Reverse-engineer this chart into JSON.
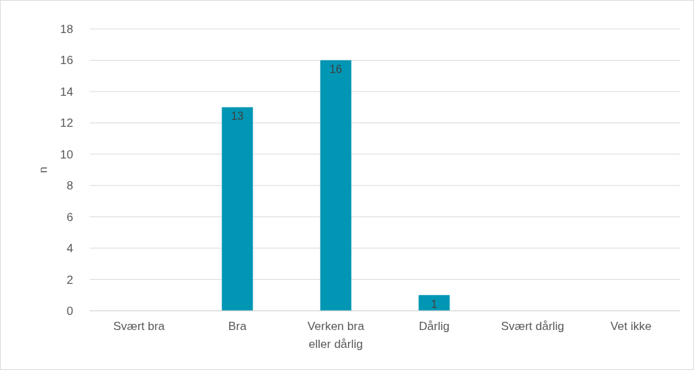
{
  "chart_data": {
    "type": "bar",
    "ylabel": "n",
    "categories": [
      "Svært bra",
      "Bra",
      "Verken bra eller dårlig",
      "Dårlig",
      "Svært dårlig",
      "Vet ikke"
    ],
    "values": [
      0,
      13,
      16,
      1,
      0,
      0
    ],
    "color": "#0096b4",
    "value_labels": [
      null,
      "13",
      "16",
      "1",
      null,
      null
    ],
    "ylim": [
      0,
      18
    ],
    "yticks": [
      0,
      2,
      4,
      6,
      8,
      10,
      12,
      14,
      16,
      18
    ],
    "grid": "y"
  }
}
